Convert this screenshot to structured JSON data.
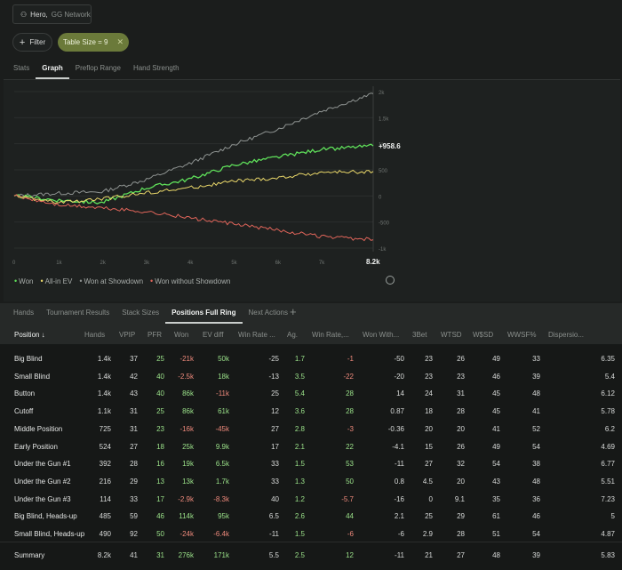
{
  "player": {
    "name": "Hero,",
    "network": "GG Network"
  },
  "filters": {
    "filter_label": "Filter",
    "tag_label": "Table Size = 9"
  },
  "top_tabs": [
    "Stats",
    "Graph",
    "Preflop Range",
    "Hand Strength"
  ],
  "top_tabs_active": 1,
  "graph": {
    "y_ticks": [
      "2k",
      "1.5k",
      "1k",
      "500",
      "0",
      "-500",
      "-1k"
    ],
    "x_ticks": [
      "0",
      "1k",
      "2k",
      "3k",
      "4k",
      "5k",
      "6k",
      "7k",
      "8.2k"
    ],
    "end_label": "+958.6",
    "legend": [
      {
        "label": "Won",
        "color": "#5fe05a"
      },
      {
        "label": "All-in EV",
        "color": "#ead86a"
      },
      {
        "label": "Won at Showdown",
        "color": "#8f9492"
      },
      {
        "label": "Won without Showdown",
        "color": "#e0655a"
      }
    ]
  },
  "chart_data": {
    "type": "line",
    "x_range": [
      0,
      8200
    ],
    "y_range": [
      -1000,
      2000
    ],
    "series": [
      {
        "name": "Won at Showdown",
        "color": "#8f9492",
        "x": [
          0,
          1000,
          2000,
          3000,
          4000,
          5000,
          6000,
          7000,
          8200
        ],
        "y": [
          0,
          50,
          80,
          310,
          620,
          980,
          1280,
          1620,
          1960
        ]
      },
      {
        "name": "Won",
        "color": "#5fe05a",
        "x": [
          0,
          1000,
          2000,
          3000,
          4000,
          5000,
          6000,
          7000,
          8200
        ],
        "y": [
          0,
          -80,
          -130,
          150,
          320,
          590,
          740,
          890,
          958.6
        ]
      },
      {
        "name": "All-in EV",
        "color": "#ead86a",
        "x": [
          0,
          1000,
          2000,
          3000,
          4000,
          5000,
          6000,
          7000,
          8200
        ],
        "y": [
          0,
          -130,
          -60,
          60,
          150,
          280,
          340,
          450,
          470
        ]
      },
      {
        "name": "Won without Showdown",
        "color": "#e0655a",
        "x": [
          0,
          1000,
          2000,
          3000,
          4000,
          5000,
          6000,
          7000,
          8200
        ],
        "y": [
          0,
          -170,
          -230,
          -300,
          -420,
          -540,
          -650,
          -780,
          -840
        ]
      }
    ]
  },
  "bottom_tabs": [
    "Hands",
    "Tournament Results",
    "Stack Sizes",
    "Positions Full Ring",
    "Next Actions"
  ],
  "bottom_tabs_active": 3,
  "columns": [
    "Position ↓",
    "Hands",
    "VPIP",
    "PFR",
    "Won",
    "EV diff",
    "Win Rate ...",
    "Ag.",
    "Win Rate,...",
    "Won With...",
    "3Bet",
    "WTSD",
    "W$SD",
    "WWSF%",
    "Dispersio..."
  ],
  "rows": [
    {
      "name": "Big Blind",
      "cells": [
        "1.4k",
        "37",
        "25",
        "-21k",
        "50k",
        "-25",
        "1.7",
        "-1",
        "-50",
        "23",
        "26",
        "49",
        "33",
        "6.35"
      ]
    },
    {
      "name": "Small Blind",
      "cells": [
        "1.4k",
        "42",
        "40",
        "-2.5k",
        "18k",
        "-13",
        "3.5",
        "-22",
        "-20",
        "23",
        "23",
        "46",
        "39",
        "5.4"
      ]
    },
    {
      "name": "Button",
      "cells": [
        "1.4k",
        "43",
        "40",
        "86k",
        "-11k",
        "25",
        "5.4",
        "28",
        "14",
        "24",
        "31",
        "45",
        "48",
        "6.12"
      ]
    },
    {
      "name": "Cutoff",
      "cells": [
        "1.1k",
        "31",
        "25",
        "86k",
        "61k",
        "12",
        "3.6",
        "28",
        "0.87",
        "18",
        "28",
        "45",
        "41",
        "5.78"
      ]
    },
    {
      "name": "Middle Position",
      "cells": [
        "725",
        "31",
        "23",
        "-16k",
        "-45k",
        "27",
        "2.8",
        "-3",
        "-0.36",
        "20",
        "20",
        "41",
        "52",
        "6.2"
      ]
    },
    {
      "name": "Early Position",
      "cells": [
        "524",
        "27",
        "18",
        "25k",
        "9.9k",
        "17",
        "2.1",
        "22",
        "-4.1",
        "15",
        "26",
        "49",
        "54",
        "4.69"
      ]
    },
    {
      "name": "Under the Gun #1",
      "cells": [
        "392",
        "28",
        "16",
        "19k",
        "6.5k",
        "33",
        "1.5",
        "53",
        "-11",
        "27",
        "32",
        "54",
        "38",
        "6.77"
      ]
    },
    {
      "name": "Under the Gun #2",
      "cells": [
        "216",
        "29",
        "13",
        "13k",
        "1.7k",
        "33",
        "1.3",
        "50",
        "0.8",
        "4.5",
        "20",
        "43",
        "48",
        "5.51"
      ]
    },
    {
      "name": "Under the Gun #3",
      "cells": [
        "114",
        "33",
        "17",
        "-2.9k",
        "-8.3k",
        "40",
        "1.2",
        "-5.7",
        "-16",
        "0",
        "9.1",
        "35",
        "36",
        "7.23"
      ]
    },
    {
      "name": "Big Blind, Heads-up",
      "cells": [
        "485",
        "59",
        "46",
        "114k",
        "95k",
        "6.5",
        "2.6",
        "44",
        "2.1",
        "25",
        "29",
        "61",
        "46",
        "5"
      ]
    },
    {
      "name": "Small Blind, Heads-up",
      "cells": [
        "490",
        "92",
        "50",
        "-24k",
        "-6.4k",
        "-11",
        "1.5",
        "-6",
        "-6",
        "2.9",
        "28",
        "51",
        "54",
        "4.87"
      ]
    },
    {
      "name": "Summary",
      "cells": [
        "8.2k",
        "41",
        "31",
        "276k",
        "171k",
        "5.5",
        "2.5",
        "12",
        "-11",
        "21",
        "27",
        "48",
        "39",
        "5.83"
      ]
    }
  ]
}
